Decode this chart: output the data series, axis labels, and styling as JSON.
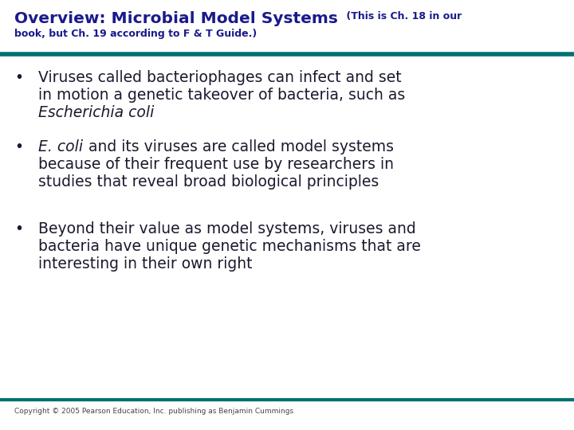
{
  "title_bold": "Overview: Microbial Model Systems",
  "title_small_line1": " (This is Ch. 18 in our",
  "title_small_line2": "book, but Ch. 19 according to F & T Guide.)",
  "title_color": "#1a1a8c",
  "teal_line_color": "#007070",
  "background_color": "#ffffff",
  "bullet_color": "#1a1a2e",
  "bullet_text_color": "#1a1a2e",
  "copyright": "Copyright © 2005 Pearson Education, Inc. publishing as Benjamin Cummings",
  "bullet1_line1": "Viruses called bacteriophages can infect and set",
  "bullet1_line2": "in motion a genetic takeover of bacteria, such as",
  "bullet1_italic": "Escherichia coli",
  "bullet2_italic": "E. coli",
  "bullet2_rest_line1": " and its viruses are called model systems",
  "bullet2_line2": "because of their frequent use by researchers in",
  "bullet2_line3": "studies that reveal broad biological principles",
  "bullet3_line1": "Beyond their value as model systems, viruses and",
  "bullet3_line2": "bacteria have unique genetic mechanisms that are",
  "bullet3_line3": "interesting in their own right",
  "title_fontsize": 14.5,
  "subtitle_fontsize": 9.0,
  "bullet_fontsize": 13.5,
  "copyright_fontsize": 6.5
}
